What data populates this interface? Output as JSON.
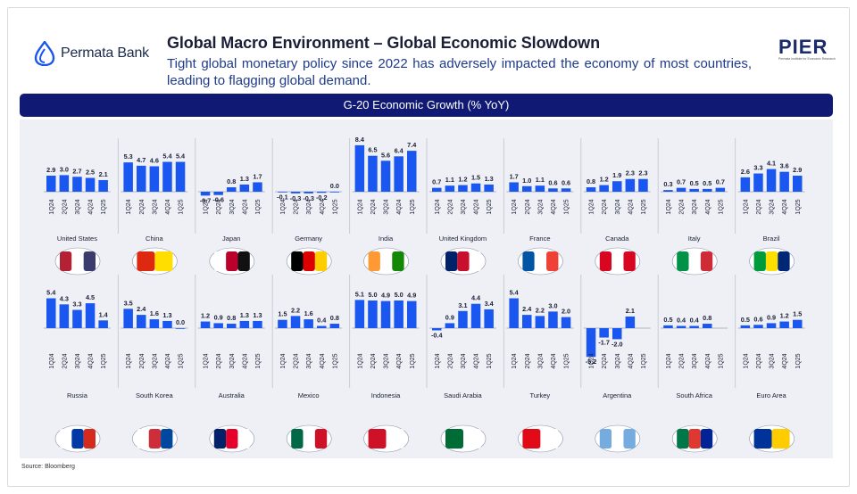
{
  "header": {
    "brand_left": "Permata Bank",
    "brand_right": "PIER",
    "brand_right_tagline": "Permata Institute for Economic Research",
    "title": "Global Macro Environment – Global Economic Slowdown",
    "subtitle": "Tight global monetary policy since 2022 has adversely impacted the economy of most countries, leading to flagging global demand."
  },
  "source": "Source: Bloomberg",
  "colors": {
    "bar": "#1a56f0",
    "header": "#101a74",
    "panel": "#eef0f5"
  },
  "chart_data": {
    "type": "bar",
    "title": "G-20 Economic Growth (% YoY)",
    "categories": [
      "1Q24",
      "2Q24",
      "3Q24",
      "4Q24",
      "1Q25"
    ],
    "panels": [
      {
        "name": "United States",
        "values": [
          2.9,
          3.0,
          2.7,
          2.5,
          2.1
        ],
        "labels": [
          "2.9",
          "3.0",
          "2.7",
          "2.5",
          "2.1"
        ],
        "flag": "us-flag-map-icon"
      },
      {
        "name": "China",
        "values": [
          5.3,
          4.7,
          4.6,
          5.4,
          5.4
        ],
        "labels": [
          "5.3",
          "4.7",
          "4.6",
          "5.4",
          "5.4"
        ],
        "flag": "china-flag-map-icon"
      },
      {
        "name": "Japan",
        "values": [
          -0.7,
          -0.6,
          0.8,
          1.3,
          1.7
        ],
        "labels": [
          "-0.7",
          "-0.6",
          "0.8",
          "1.3",
          "1.7"
        ],
        "flag": "japan-flag-map-icon"
      },
      {
        "name": "Germany",
        "values": [
          -0.1,
          -0.3,
          -0.3,
          -0.2,
          0.0
        ],
        "labels": [
          "-0.1",
          "-0.3",
          "-0.3",
          "-0.2",
          "0.0"
        ],
        "flag": "germany-flag-map-icon"
      },
      {
        "name": "India",
        "values": [
          8.4,
          6.5,
          5.6,
          6.4,
          7.4
        ],
        "labels": [
          "8.4",
          "6.5",
          "5.6",
          "6.4",
          "7.4"
        ],
        "flag": "india-flag-map-icon"
      },
      {
        "name": "United Kingdom",
        "values": [
          0.7,
          1.1,
          1.2,
          1.5,
          1.3
        ],
        "labels": [
          "0.7",
          "1.1",
          "1.2",
          "1.5",
          "1.3"
        ],
        "flag": "uk-flag-map-icon"
      },
      {
        "name": "France",
        "values": [
          1.7,
          1.0,
          1.1,
          0.6,
          0.6
        ],
        "labels": [
          "1.7",
          "1.0",
          "1.1",
          "0.6",
          "0.6"
        ],
        "flag": "france-flag-map-icon"
      },
      {
        "name": "Canada",
        "values": [
          0.8,
          1.2,
          1.9,
          2.3,
          2.3
        ],
        "labels": [
          "0.8",
          "1.2",
          "1.9",
          "2.3",
          "2.3"
        ],
        "flag": "canada-flag-map-icon"
      },
      {
        "name": "Italy",
        "values": [
          0.3,
          0.7,
          0.5,
          0.5,
          0.7
        ],
        "labels": [
          "0.3",
          "0.7",
          "0.5",
          "0.5",
          "0.7"
        ],
        "flag": "italy-flag-map-icon"
      },
      {
        "name": "Brazil",
        "values": [
          2.6,
          3.3,
          4.1,
          3.6,
          2.9
        ],
        "labels": [
          "2.6",
          "3.3",
          "4.1",
          "3.6",
          "2.9"
        ],
        "flag": "brazil-flag-map-icon"
      },
      {
        "name": "Russia",
        "values": [
          5.4,
          4.3,
          3.3,
          4.5,
          1.4
        ],
        "labels": [
          "5.4",
          "4.3",
          "3.3",
          "4.5",
          "1.4"
        ],
        "flag": "russia-flag-map-icon"
      },
      {
        "name": "South Korea",
        "values": [
          3.5,
          2.4,
          1.6,
          1.3,
          0.0
        ],
        "labels": [
          "3.5",
          "2.4",
          "1.6",
          "1.3",
          "0.0"
        ],
        "flag": "south-korea-flag-map-icon"
      },
      {
        "name": "Australia",
        "values": [
          1.2,
          0.9,
          0.8,
          1.3,
          1.3
        ],
        "labels": [
          "1.2",
          "0.9",
          "0.8",
          "1.3",
          "1.3"
        ],
        "flag": "australia-flag-map-icon"
      },
      {
        "name": "Mexico",
        "values": [
          1.5,
          2.2,
          1.6,
          0.4,
          0.8
        ],
        "labels": [
          "1.5",
          "2.2",
          "1.6",
          "0.4",
          "0.8"
        ],
        "flag": "mexico-flag-map-icon"
      },
      {
        "name": "Indonesia",
        "values": [
          5.1,
          5.0,
          4.9,
          5.0,
          4.9
        ],
        "labels": [
          "5.1",
          "5.0",
          "4.9",
          "5.0",
          "4.9"
        ],
        "flag": "indonesia-flag-map-icon"
      },
      {
        "name": "Saudi Arabia",
        "values": [
          -0.4,
          0.9,
          3.1,
          4.4,
          3.4
        ],
        "labels": [
          "-0.4",
          "0.9",
          "3.1",
          "4.4",
          "3.4"
        ],
        "flag": "saudi-arabia-flag-map-icon"
      },
      {
        "name": "Turkey",
        "values": [
          5.4,
          2.4,
          2.2,
          3.0,
          2.0
        ],
        "labels": [
          "5.4",
          "2.4",
          "2.2",
          "3.0",
          "2.0"
        ],
        "flag": "turkey-flag-map-icon"
      },
      {
        "name": "Argentina",
        "values": [
          -5.2,
          -1.7,
          -2.0,
          2.1,
          null
        ],
        "labels": [
          "-5.2",
          "-1.7",
          "-2.0",
          "2.1",
          ""
        ],
        "flag": "argentina-flag-map-icon"
      },
      {
        "name": "South Africa",
        "values": [
          0.5,
          0.4,
          0.4,
          0.8,
          null
        ],
        "labels": [
          "0.5",
          "0.4",
          "0.4",
          "0.8",
          ""
        ],
        "flag": "south-africa-flag-map-icon"
      },
      {
        "name": "Euro Area",
        "values": [
          0.5,
          0.6,
          0.9,
          1.2,
          1.5
        ],
        "labels": [
          "0.5",
          "0.6",
          "0.9",
          "1.2",
          "1.5"
        ],
        "flag": "euro-area-flag-map-icon"
      }
    ]
  }
}
